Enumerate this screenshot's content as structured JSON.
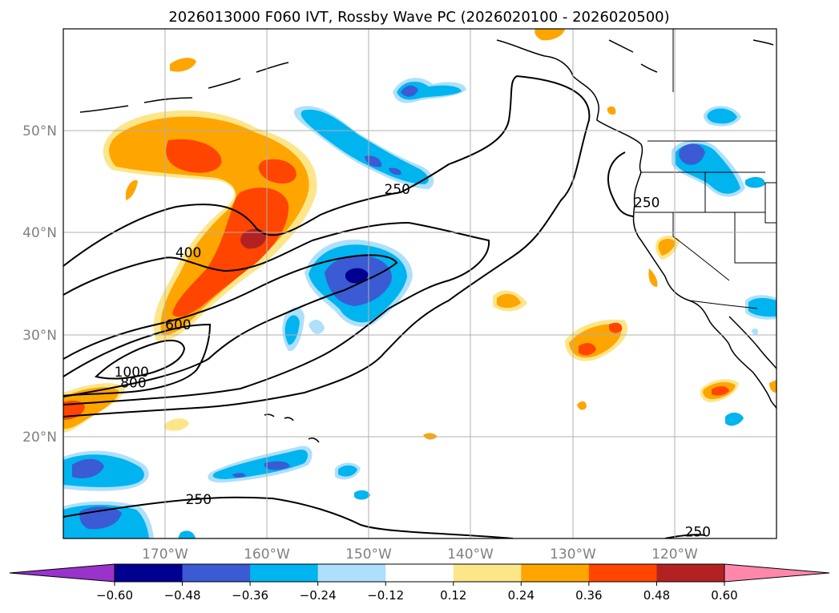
{
  "title": "2026013000 F060 IVT, Rossby Wave PC (2026020100 - 2026020500)",
  "map": {
    "lon_range": [
      -180,
      -110
    ],
    "lat_range": [
      10,
      60
    ],
    "lon_ticks": [
      {
        "value": -170,
        "label": "170°W"
      },
      {
        "value": -160,
        "label": "160°W"
      },
      {
        "value": -150,
        "label": "150°W"
      },
      {
        "value": -140,
        "label": "140°W"
      },
      {
        "value": -130,
        "label": "130°W"
      },
      {
        "value": -120,
        "label": "120°W"
      }
    ],
    "lat_ticks": [
      {
        "value": 20,
        "label": "20°N"
      },
      {
        "value": 30,
        "label": "30°N"
      },
      {
        "value": 40,
        "label": "40°N"
      },
      {
        "value": 50,
        "label": "50°N"
      }
    ],
    "gridlines": true,
    "contour_labels": [
      {
        "text": "250",
        "lon": -148.5,
        "lat": 43.8
      },
      {
        "text": "250",
        "lon": -124,
        "lat": 42.5
      },
      {
        "text": "250",
        "lon": -168,
        "lat": 13.4
      },
      {
        "text": "250",
        "lon": -119,
        "lat": 10.2
      },
      {
        "text": "400",
        "lon": -169,
        "lat": 37.6
      },
      {
        "text": "600",
        "lon": -170,
        "lat": 30.5
      },
      {
        "text": "800",
        "lon": -174.4,
        "lat": 24.8
      },
      {
        "text": "1000",
        "lon": -175,
        "lat": 25.9
      }
    ]
  },
  "colorbar": {
    "ticks": [
      "−0.60",
      "−0.48",
      "−0.36",
      "−0.24",
      "−0.12",
      "0.12",
      "0.24",
      "0.36",
      "0.48",
      "0.60"
    ],
    "colors": [
      "#9933cc",
      "#000090",
      "#3a5bd3",
      "#00b4f0",
      "#aee0fb",
      "#ffffff",
      "#fde68a",
      "#ffa500",
      "#ff4500",
      "#b22222",
      "#ff88aa"
    ]
  }
}
